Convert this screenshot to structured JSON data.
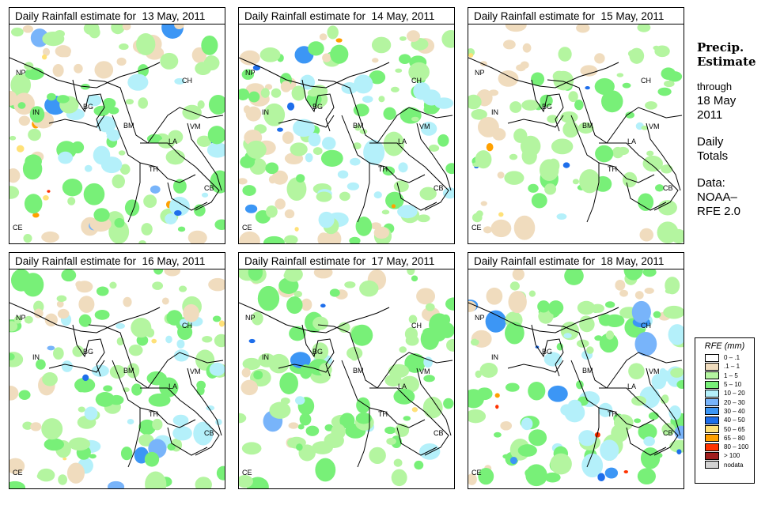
{
  "panels": [
    {
      "title": "Daily Rainfall estimate for  13 May, 2011",
      "seed": 13,
      "intensity": 0.9
    },
    {
      "title": "Daily Rainfall estimate for  14 May, 2011",
      "seed": 14,
      "intensity": 1.0
    },
    {
      "title": "Daily Rainfall estimate for  15 May, 2011",
      "seed": 15,
      "intensity": 0.7
    },
    {
      "title": "Daily Rainfall estimate for  16 May, 2011",
      "seed": 16,
      "intensity": 0.9
    },
    {
      "title": "Daily Rainfall estimate for  17 May, 2011",
      "seed": 17,
      "intensity": 0.8
    },
    {
      "title": "Daily Rainfall estimate for  18 May, 2011",
      "seed": 18,
      "intensity": 1.0
    }
  ],
  "country_labels": [
    "NP",
    "IN",
    "BG",
    "BM",
    "CH",
    "VM",
    "LA",
    "TH",
    "CB",
    "CE"
  ],
  "side": {
    "title1": "Precip.",
    "title2": "Estimate",
    "through": "through",
    "date1": "18 May",
    "date2": "2011",
    "daily1": "Daily",
    "daily2": "Totals",
    "data1": "Data:",
    "data2": "NOAA–",
    "data3": "RFE 2.0"
  },
  "legend": {
    "title": "RFE (mm)",
    "items": [
      {
        "label": "0 – .1",
        "color": "#ffffff"
      },
      {
        "label": ".1 – 1",
        "color": "#f0dcbe"
      },
      {
        "label": "1 – 5",
        "color": "#b4f5a0"
      },
      {
        "label": "5 – 10",
        "color": "#78f078"
      },
      {
        "label": "10 – 20",
        "color": "#b4f0fa"
      },
      {
        "label": "20 – 30",
        "color": "#78b4fa"
      },
      {
        "label": "30 – 40",
        "color": "#3c96f5"
      },
      {
        "label": "40 – 50",
        "color": "#1e6eeb"
      },
      {
        "label": "50 – 65",
        "color": "#ffe178"
      },
      {
        "label": "65 – 80",
        "color": "#ffa000"
      },
      {
        "label": "80 – 100",
        "color": "#ff3200"
      },
      {
        "label": "> 100",
        "color": "#a01e1e"
      },
      {
        "label": "nodata",
        "color": "#d2d2d2"
      }
    ]
  }
}
